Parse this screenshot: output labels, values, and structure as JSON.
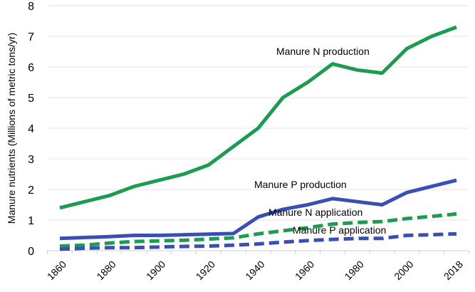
{
  "chart_data": {
    "type": "line",
    "title": "",
    "xlabel": "",
    "ylabel": "Manure nutrients (Millions of metric tons/yr)",
    "ylim": [
      0,
      8
    ],
    "yticks": [
      0,
      1,
      2,
      3,
      4,
      5,
      6,
      7,
      8
    ],
    "grid": true,
    "categories": [
      1860,
      1870,
      1880,
      1890,
      1900,
      1910,
      1920,
      1930,
      1940,
      1950,
      1960,
      1970,
      1980,
      1990,
      2000,
      2010,
      2018
    ],
    "xtick_labels": [
      "1860",
      "1880",
      "1900",
      "1920",
      "1940",
      "1960",
      "1980",
      "2000",
      "2018"
    ],
    "series": [
      {
        "name": "Manure N production",
        "color": "#1e9b52",
        "style": "solid",
        "values": [
          1.4,
          1.6,
          1.8,
          2.1,
          2.3,
          2.5,
          2.8,
          3.4,
          4.0,
          5.0,
          5.5,
          6.1,
          5.9,
          5.8,
          6.6,
          7.0,
          7.3
        ]
      },
      {
        "name": "Manure P production",
        "color": "#3a4fb3",
        "style": "solid",
        "values": [
          0.4,
          0.43,
          0.46,
          0.5,
          0.5,
          0.52,
          0.54,
          0.56,
          1.1,
          1.35,
          1.5,
          1.7,
          1.6,
          1.5,
          1.9,
          2.1,
          2.3
        ]
      },
      {
        "name": "Manure N application",
        "color": "#1e9b52",
        "style": "dashed",
        "values": [
          0.15,
          0.18,
          0.25,
          0.3,
          0.32,
          0.34,
          0.38,
          0.42,
          0.55,
          0.65,
          0.75,
          0.87,
          0.92,
          0.95,
          1.05,
          1.12,
          1.2
        ]
      },
      {
        "name": "Manure P application",
        "color": "#3a4fb3",
        "style": "dashed",
        "values": [
          0.05,
          0.08,
          0.1,
          0.1,
          0.12,
          0.14,
          0.15,
          0.18,
          0.22,
          0.28,
          0.33,
          0.37,
          0.4,
          0.4,
          0.5,
          0.52,
          0.55
        ]
      }
    ]
  }
}
